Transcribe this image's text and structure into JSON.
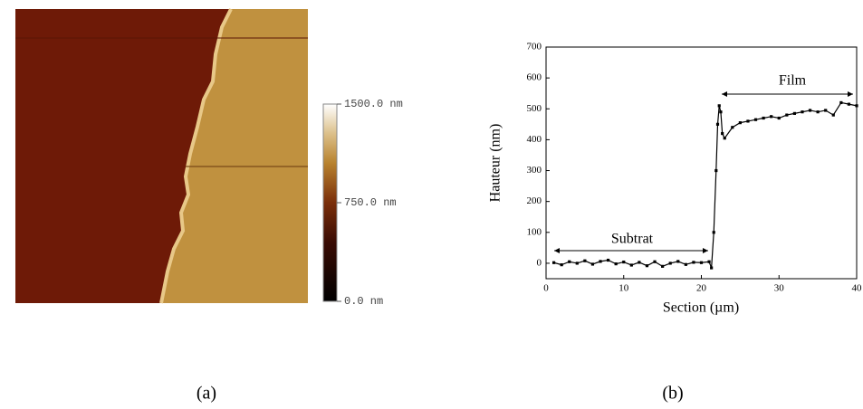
{
  "chart_data": [
    {
      "type": "image",
      "caption": "(a)",
      "colorbar": {
        "lim": [
          0,
          1500
        ],
        "ticks": [
          {
            "value": 1500,
            "label": "1500.0 nm"
          },
          {
            "value": 750,
            "label": "750.0 nm"
          },
          {
            "value": 0,
            "label": "0.0 nm"
          }
        ]
      }
    },
    {
      "type": "line",
      "caption": "(b)",
      "x_label": "Section (µm)",
      "y_label": "Hauteur (nm)",
      "annotations": [
        "Subtrat",
        "Film"
      ],
      "x": [
        1,
        2,
        3,
        4,
        5,
        6,
        7,
        8,
        9,
        10,
        11,
        12,
        13,
        14,
        15,
        16,
        17,
        18,
        19,
        20,
        21,
        21.3,
        21.6,
        21.9,
        22.1,
        22.3,
        22.5,
        22.7,
        23,
        24,
        25,
        26,
        27,
        28,
        29,
        30,
        31,
        32,
        33,
        34,
        35,
        36,
        37,
        38,
        39,
        40
      ],
      "values": [
        2,
        -5,
        5,
        0,
        8,
        -3,
        6,
        10,
        -2,
        4,
        -6,
        3,
        -8,
        5,
        -10,
        0,
        6,
        -4,
        3,
        2,
        5,
        -15,
        100,
        300,
        450,
        510,
        490,
        420,
        405,
        440,
        455,
        460,
        465,
        470,
        475,
        470,
        480,
        485,
        490,
        495,
        490,
        495,
        480,
        520,
        515,
        510
      ],
      "color": "#000000",
      "xlim": [
        0,
        40
      ],
      "xticks": [
        0,
        10,
        20,
        30,
        40
      ],
      "ylim": [
        -50,
        700
      ],
      "yticks": [
        0,
        100,
        200,
        300,
        400,
        500,
        600,
        700
      ]
    }
  ]
}
